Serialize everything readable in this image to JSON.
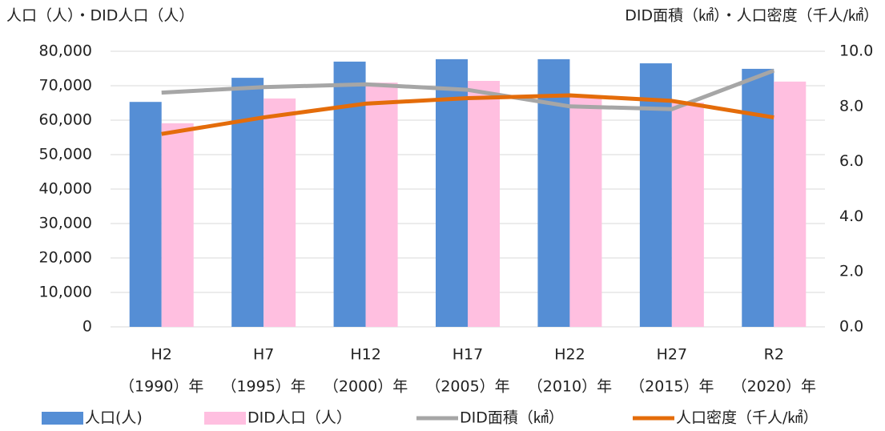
{
  "chart_data": {
    "type": "bar_line",
    "y_title": "人口（人）・DID人口（人）",
    "y2_title": "DID面積（㎢）・人口密度（千人/㎢）",
    "categories": [
      [
        "H2",
        "（1990）年"
      ],
      [
        "H7",
        "（1995）年"
      ],
      [
        "H12",
        "（2000）年"
      ],
      [
        "H17",
        "（2005）年"
      ],
      [
        "H22",
        "（2010）年"
      ],
      [
        "H27",
        "（2015）年"
      ],
      [
        "R2",
        "（2020）年"
      ]
    ],
    "series": [
      {
        "name": "人口(人)",
        "type": "bar",
        "color": "#558ed5",
        "values": [
          65300,
          72300,
          77000,
          77700,
          77700,
          76500,
          74900
        ]
      },
      {
        "name": "DID人口（人）",
        "type": "bar",
        "color": "#ffbfe0",
        "values": [
          59100,
          66300,
          70900,
          71400,
          66700,
          65100,
          71200
        ]
      },
      {
        "name": "DID面積（㎢）",
        "type": "line",
        "axis": "y2",
        "color": "#a6a6a6",
        "values": [
          8.5,
          8.7,
          8.8,
          8.6,
          8.0,
          7.9,
          9.3
        ]
      },
      {
        "name": "人口密度（千人/㎢）",
        "type": "line",
        "axis": "y2",
        "color": "#e46c0a",
        "values": [
          7.0,
          7.6,
          8.1,
          8.3,
          8.4,
          8.2,
          7.6
        ]
      }
    ],
    "ylim": [
      0,
      80000
    ],
    "yticks": [
      {
        "value": 0,
        "label": "0"
      },
      {
        "value": 10000,
        "label": "10,000"
      },
      {
        "value": 20000,
        "label": "20,000"
      },
      {
        "value": 30000,
        "label": "30,000"
      },
      {
        "value": 40000,
        "label": "40,000"
      },
      {
        "value": 50000,
        "label": "50,000"
      },
      {
        "value": 60000,
        "label": "60,000"
      },
      {
        "value": 70000,
        "label": "70,000"
      },
      {
        "value": 80000,
        "label": "80,000"
      }
    ],
    "y2lim": [
      0,
      10
    ],
    "y2ticks": [
      {
        "value": 0,
        "label": "0.0"
      },
      {
        "value": 2,
        "label": "2.0"
      },
      {
        "value": 4,
        "label": "4.0"
      },
      {
        "value": 6,
        "label": "6.0"
      },
      {
        "value": 8,
        "label": "8.0"
      },
      {
        "value": 10,
        "label": "10.0"
      }
    ],
    "grid": true,
    "legend": "bottom"
  }
}
